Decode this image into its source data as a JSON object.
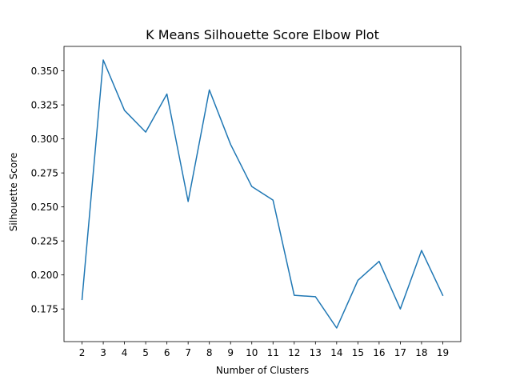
{
  "chart_data": {
    "type": "line",
    "title": "K Means Silhouette Score Elbow Plot",
    "xlabel": "Number of Clusters",
    "ylabel": "Silhouette Score",
    "x": [
      2,
      3,
      4,
      5,
      6,
      7,
      8,
      9,
      10,
      11,
      12,
      13,
      14,
      15,
      16,
      17,
      18,
      19
    ],
    "series": [
      {
        "values": [
          0.182,
          0.358,
          0.321,
          0.305,
          0.333,
          0.254,
          0.336,
          0.296,
          0.265,
          0.255,
          0.185,
          0.184,
          0.161,
          0.196,
          0.21,
          0.175,
          0.218,
          0.185
        ],
        "color": "#1f77b4"
      }
    ],
    "xticks": [
      "2",
      "3",
      "4",
      "5",
      "6",
      "7",
      "8",
      "9",
      "10",
      "11",
      "12",
      "13",
      "14",
      "15",
      "16",
      "17",
      "18",
      "19"
    ],
    "yticks": [
      "0.175",
      "0.200",
      "0.225",
      "0.250",
      "0.275",
      "0.300",
      "0.325",
      "0.350"
    ],
    "xlim": [
      1.15,
      19.85
    ],
    "ylim": [
      0.151,
      0.368
    ],
    "grid": false,
    "legend": "none"
  }
}
